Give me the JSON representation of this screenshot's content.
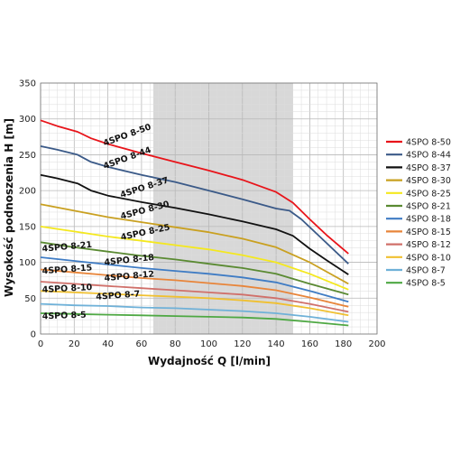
{
  "chart_data": {
    "type": "line",
    "xlabel": "Wydajność Q [l/min]",
    "ylabel": "Wysokość podnoszenia H [m]",
    "xlim": [
      0,
      200
    ],
    "ylim": [
      0,
      350
    ],
    "x_ticks": [
      0,
      20,
      40,
      60,
      80,
      100,
      120,
      140,
      160,
      180,
      200
    ],
    "y_ticks": [
      0,
      50,
      100,
      150,
      200,
      250,
      300,
      350
    ],
    "grid": true,
    "legend_position": "right",
    "shaded_range": {
      "x_from": 67,
      "x_to": 150,
      "color": "#d8d8d8"
    },
    "series": [
      {
        "name": "4SPO 8-50",
        "color": "#e8141a",
        "x": [
          0,
          10,
          22,
          30,
          40,
          60,
          80,
          100,
          120,
          140,
          150,
          160,
          170,
          183
        ],
        "y": [
          298,
          290,
          282,
          273,
          265,
          252,
          240,
          228,
          215,
          198,
          183,
          160,
          138,
          112
        ]
      },
      {
        "name": "4SPO 8-44",
        "color": "#3b5a88",
        "x": [
          0,
          10,
          22,
          30,
          40,
          60,
          80,
          100,
          120,
          140,
          148,
          155,
          165,
          183
        ],
        "y": [
          262,
          257,
          250,
          240,
          233,
          222,
          212,
          200,
          188,
          175,
          172,
          160,
          138,
          98
        ]
      },
      {
        "name": "4SPO 8-37",
        "color": "#111111",
        "x": [
          0,
          10,
          22,
          30,
          40,
          60,
          80,
          100,
          120,
          140,
          150,
          160,
          170,
          183
        ],
        "y": [
          222,
          217,
          210,
          200,
          193,
          184,
          176,
          167,
          157,
          146,
          137,
          119,
          103,
          83
        ]
      },
      {
        "name": "4SPO 8-30",
        "color": "#c9a020",
        "x": [
          0,
          20,
          40,
          60,
          80,
          100,
          120,
          140,
          160,
          183
        ],
        "y": [
          181,
          172,
          163,
          156,
          149,
          142,
          133,
          121,
          100,
          70
        ]
      },
      {
        "name": "4SPO 8-25",
        "color": "#f4e81e",
        "x": [
          0,
          20,
          40,
          60,
          80,
          100,
          120,
          140,
          160,
          183
        ],
        "y": [
          150,
          143,
          136,
          130,
          124,
          118,
          110,
          100,
          84,
          62
        ]
      },
      {
        "name": "4SPO 8-21",
        "color": "#5a8a32",
        "x": [
          0,
          20,
          40,
          60,
          80,
          100,
          120,
          140,
          160,
          183
        ],
        "y": [
          128,
          121,
          115,
          109,
          104,
          98,
          92,
          84,
          70,
          55
        ]
      },
      {
        "name": "4SPO 8-18",
        "color": "#3f7cc4",
        "x": [
          0,
          20,
          40,
          60,
          80,
          100,
          120,
          140,
          160,
          183
        ],
        "y": [
          107,
          102,
          97,
          92,
          88,
          84,
          79,
          72,
          60,
          45
        ]
      },
      {
        "name": "4SPO 8-15",
        "color": "#e8853a",
        "x": [
          0,
          20,
          40,
          60,
          80,
          100,
          120,
          140,
          160,
          183
        ],
        "y": [
          90,
          86,
          82,
          78,
          75,
          71,
          67,
          61,
          51,
          38
        ]
      },
      {
        "name": "4SPO 8-12",
        "color": "#d0706a",
        "x": [
          0,
          20,
          40,
          60,
          80,
          100,
          120,
          140,
          160,
          183
        ],
        "y": [
          73,
          70,
          67,
          64,
          61,
          58,
          55,
          50,
          42,
          31
        ]
      },
      {
        "name": "4SPO 8-10",
        "color": "#f0c030",
        "x": [
          0,
          20,
          40,
          60,
          80,
          100,
          120,
          140,
          160,
          183
        ],
        "y": [
          60,
          58,
          56,
          54,
          52,
          50,
          47,
          43,
          36,
          26
        ]
      },
      {
        "name": "4SPO 8-7",
        "color": "#6fb1d8",
        "x": [
          0,
          20,
          40,
          60,
          80,
          100,
          120,
          140,
          160,
          183
        ],
        "y": [
          42,
          40,
          39,
          37,
          36,
          34,
          32,
          29,
          24,
          17
        ]
      },
      {
        "name": "4SPO 8-5",
        "color": "#4ea843",
        "x": [
          0,
          20,
          40,
          60,
          80,
          100,
          120,
          140,
          160,
          183
        ],
        "y": [
          29,
          28,
          27,
          26,
          25,
          24,
          23,
          21,
          17,
          12
        ]
      }
    ],
    "inline_labels": [
      {
        "text": "4SPO 8-50",
        "x": 38,
        "y": 262,
        "angle": -20
      },
      {
        "text": "4SPO 8-44",
        "x": 38,
        "y": 230,
        "angle": -20
      },
      {
        "text": "4SPO 8-37",
        "x": 48,
        "y": 190,
        "angle": -18
      },
      {
        "text": "4SPO 8-30",
        "x": 48,
        "y": 160,
        "angle": -15
      },
      {
        "text": "4SPO 8-25",
        "x": 48,
        "y": 131,
        "angle": -12
      },
      {
        "text": "4SPO 8-21",
        "x": 1,
        "y": 115,
        "angle": -5
      },
      {
        "text": "4SPO 8-18",
        "x": 38,
        "y": 96,
        "angle": -6
      },
      {
        "text": "4SPO 8-15",
        "x": 1,
        "y": 84,
        "angle": -4
      },
      {
        "text": "4SPO 8-12",
        "x": 38,
        "y": 74,
        "angle": -5
      },
      {
        "text": "4SPO 8-10",
        "x": 1,
        "y": 58,
        "angle": -3
      },
      {
        "text": "4SPO 8-7",
        "x": 33,
        "y": 48,
        "angle": -4
      },
      {
        "text": "4SPO 8-5",
        "x": 1,
        "y": 21,
        "angle": -2
      }
    ]
  }
}
